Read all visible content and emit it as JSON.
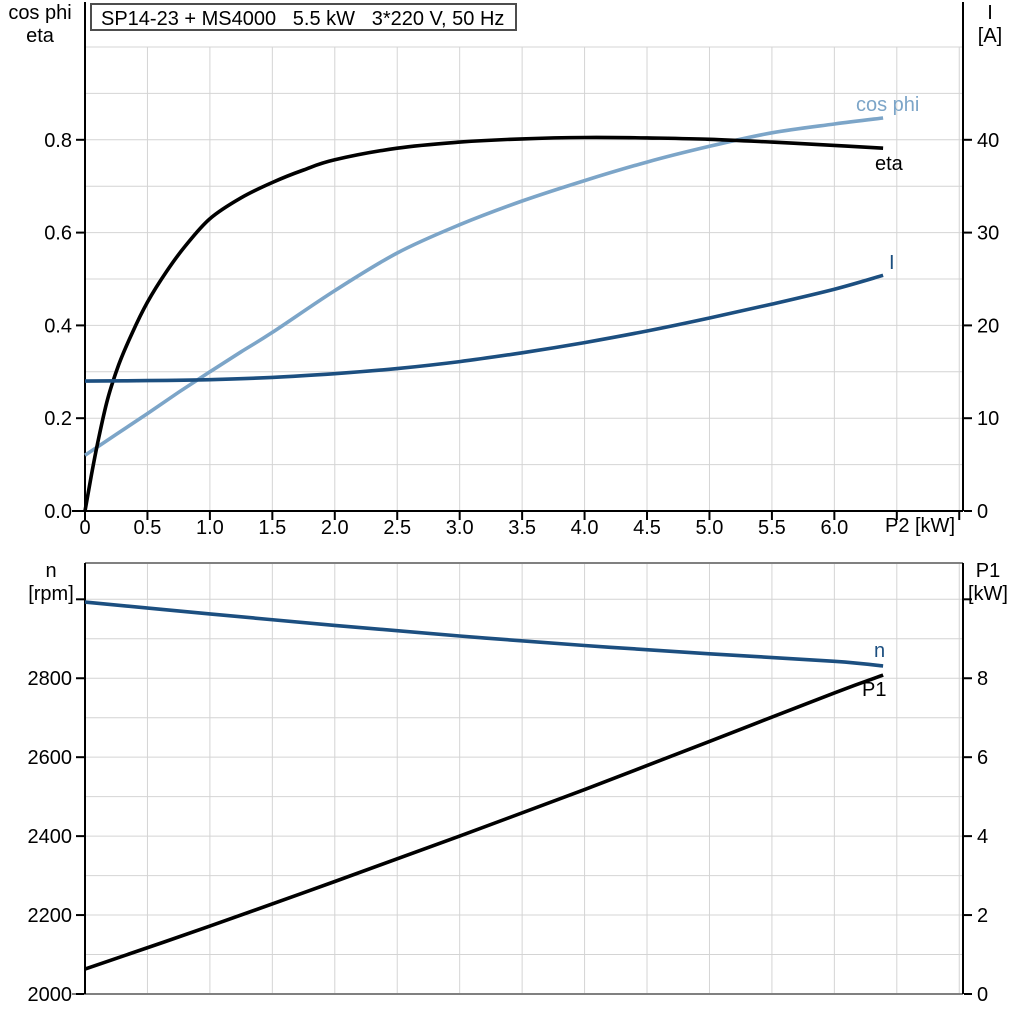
{
  "title_box": {
    "text": "SP14-23 + MS4000   5.5 kW   3*220 V, 50 Hz"
  },
  "colors": {
    "light_blue": "#7CA5C8",
    "dark_blue": "#1C4F80",
    "black": "#000000",
    "grid": "#D4D4D4",
    "axis_gray": "#808080",
    "background": "#FFFFFF"
  },
  "chart_data": [
    {
      "type": "line",
      "title": "SP14-23 + MS4000   5.5 kW   3*220 V, 50 Hz",
      "x_axis": {
        "label": "P2 [kW]",
        "range": [
          0,
          7.03
        ],
        "grid_step": 0.5,
        "ticks": [
          0,
          0.5,
          1.0,
          1.5,
          2.0,
          2.5,
          3.0,
          3.5,
          4.0,
          4.5,
          5.0,
          5.5,
          6.0,
          6.5,
          7.0
        ],
        "tick_labels": [
          "0",
          "0.5",
          "1.0",
          "1.5",
          "2.0",
          "2.5",
          "3.0",
          "3.5",
          "4.0",
          "4.5",
          "5.0",
          "5.5",
          "6.0",
          "",
          ""
        ]
      },
      "y_left": {
        "title_lines": [
          "cos phi",
          "eta"
        ],
        "range": [
          0,
          1.0
        ],
        "grid_step": 0.1,
        "ticks": [
          0,
          0.2,
          0.4,
          0.6,
          0.8
        ],
        "tick_labels": [
          "0.0",
          "0.2",
          "0.4",
          "0.6",
          "0.8"
        ]
      },
      "y_right": {
        "title_lines": [
          "I",
          "[A]"
        ],
        "range": [
          0,
          50
        ],
        "ticks": [
          0,
          10,
          20,
          30,
          40
        ],
        "tick_labels": [
          "0",
          "10",
          "20",
          "30",
          "40"
        ]
      },
      "series": [
        {
          "name": "cos phi",
          "axis": "left",
          "color": "#7CA5C8",
          "x": [
            0,
            0.25,
            0.5,
            0.75,
            1.0,
            1.25,
            1.5,
            2.0,
            2.5,
            3.0,
            3.5,
            4.0,
            4.5,
            5.0,
            5.5,
            6.0,
            6.39
          ],
          "y": [
            0.12,
            0.165,
            0.21,
            0.256,
            0.3,
            0.343,
            0.385,
            0.475,
            0.556,
            0.617,
            0.668,
            0.712,
            0.752,
            0.786,
            0.815,
            0.834,
            0.847
          ]
        },
        {
          "name": "eta",
          "axis": "left",
          "color": "#000000",
          "x": [
            0,
            0.05,
            0.1,
            0.18,
            0.27,
            0.38,
            0.5,
            0.65,
            0.8,
            1.0,
            1.25,
            1.5,
            1.75,
            2.0,
            2.5,
            3.0,
            3.5,
            4.0,
            4.5,
            5.0,
            5.5,
            6.0,
            6.39
          ],
          "y": [
            0,
            0.075,
            0.145,
            0.24,
            0.315,
            0.385,
            0.45,
            0.515,
            0.57,
            0.63,
            0.675,
            0.708,
            0.735,
            0.757,
            0.782,
            0.795,
            0.802,
            0.805,
            0.804,
            0.801,
            0.795,
            0.788,
            0.782
          ]
        },
        {
          "name": "I",
          "axis": "right",
          "color": "#1C4F80",
          "x": [
            0,
            0.5,
            1.0,
            1.5,
            2.0,
            2.5,
            3.0,
            3.5,
            4.0,
            4.5,
            5.0,
            5.5,
            6.0,
            6.39
          ],
          "y": [
            14.0,
            14.05,
            14.15,
            14.4,
            14.8,
            15.35,
            16.1,
            17.05,
            18.15,
            19.4,
            20.8,
            22.3,
            23.9,
            25.4
          ]
        }
      ]
    },
    {
      "type": "line",
      "title": "",
      "x_axis": {
        "label": "",
        "range": [
          0,
          7.03
        ],
        "grid_step": 0.5,
        "ticks": [],
        "tick_labels": []
      },
      "y_left": {
        "title_lines": [
          "n",
          "[rpm]"
        ],
        "range": [
          2000,
          3092
        ],
        "grid_step": 100,
        "ticks": [
          2000,
          2200,
          2400,
          2600,
          2800,
          3000
        ],
        "tick_labels": [
          "2000",
          "2200",
          "2400",
          "2600",
          "2800",
          ""
        ]
      },
      "y_right": {
        "title_lines": [
          "P1",
          "[kW]"
        ],
        "range": [
          0,
          10.92
        ],
        "ticks": [
          0,
          2,
          4,
          6,
          8,
          10
        ],
        "tick_labels": [
          "0",
          "2",
          "4",
          "6",
          "8",
          ""
        ]
      },
      "series": [
        {
          "name": "n",
          "axis": "left",
          "color": "#1C4F80",
          "x": [
            0,
            1,
            2,
            3,
            4,
            5,
            6,
            6.39
          ],
          "y": [
            2993,
            2963,
            2934,
            2907,
            2883,
            2862,
            2843,
            2831
          ]
        },
        {
          "name": "P1",
          "axis": "right",
          "color": "#000000",
          "x": [
            0,
            1,
            2,
            3,
            4,
            5,
            6,
            6.39
          ],
          "y": [
            0.63,
            1.72,
            2.85,
            4.0,
            5.18,
            6.4,
            7.63,
            8.08
          ]
        }
      ]
    }
  ]
}
